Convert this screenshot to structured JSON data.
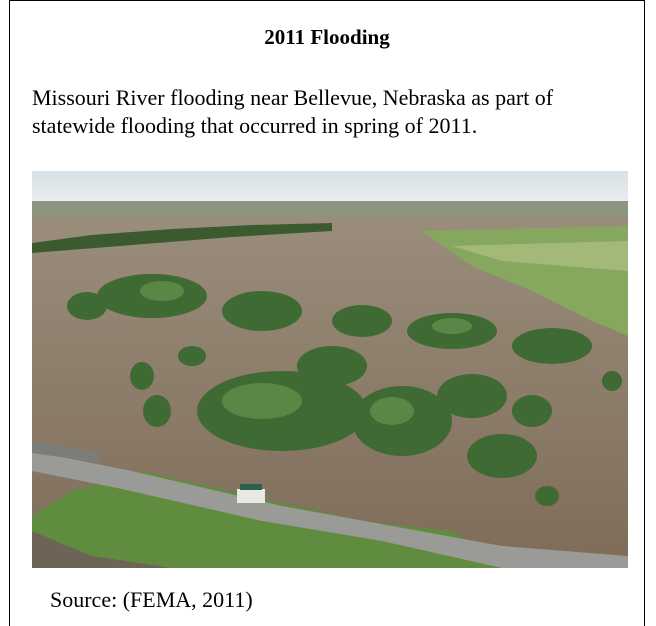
{
  "panel": {
    "title": "2011 Flooding",
    "caption": "Missouri River flooding near Bellevue, Nebraska as part of statewide flooding that occurred in spring of 2011.",
    "source": "Source:  (FEMA, 2011)"
  },
  "photo": {
    "subject": "aerial-flood-photo",
    "colors": {
      "sky": "#dfe6ea",
      "water": "#8a7a66",
      "trees": "#3f6a34",
      "field": "#7fa25a",
      "road": "#9a9a96"
    }
  }
}
